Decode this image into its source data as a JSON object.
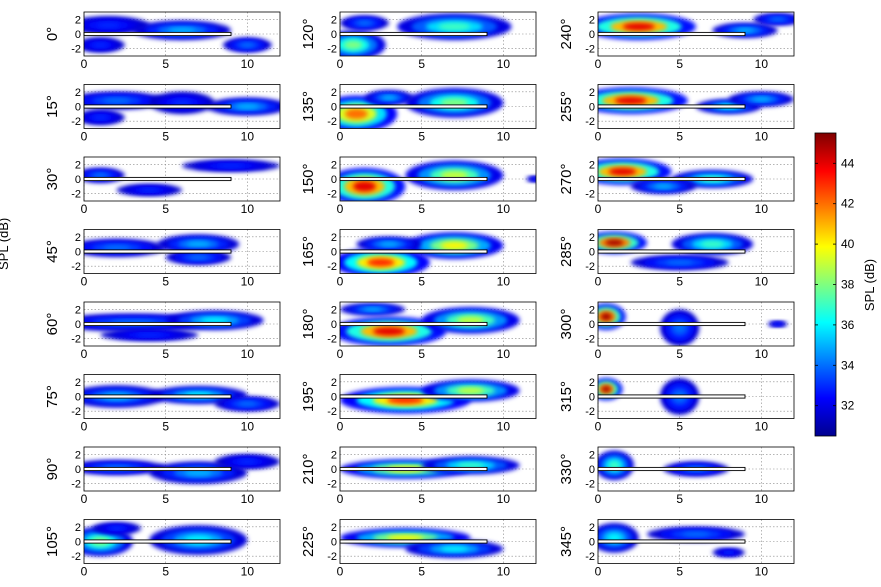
{
  "figure": {
    "cut_off_left_label": "SPL (dB)",
    "colorbar": {
      "label": "SPL (dB)",
      "ticks": [
        32,
        34,
        36,
        38,
        40,
        42,
        44
      ],
      "range": [
        30.5,
        45.5
      ],
      "colormap": "jet"
    },
    "panel_axes": {
      "x_ticks": [
        0,
        5,
        10
      ],
      "y_ticks": [
        2,
        0,
        -2
      ],
      "x_range": [
        0,
        12
      ],
      "y_range": [
        -3,
        3
      ],
      "grid": "dotted"
    }
  },
  "chart_data": {
    "type": "heatmap",
    "panels": [
      {
        "label": "0°",
        "blobs": [
          [
            1.5,
            1.2,
            2.5,
            1.2,
            33
          ],
          [
            6,
            0.5,
            3,
            1.3,
            35
          ],
          [
            10,
            -1.5,
            1.5,
            1,
            34
          ],
          [
            1,
            -1.5,
            1.5,
            1,
            33
          ]
        ]
      },
      {
        "label": "15°",
        "blobs": [
          [
            2,
            0.8,
            3,
            1.2,
            34
          ],
          [
            6,
            0.5,
            2,
            1.5,
            33
          ],
          [
            10,
            0,
            2.5,
            1.2,
            35
          ],
          [
            1,
            -1.5,
            1.5,
            1,
            33
          ]
        ]
      },
      {
        "label": "30°",
        "blobs": [
          [
            1,
            0.5,
            1.5,
            1,
            34
          ],
          [
            9,
            1.8,
            3,
            0.8,
            33
          ],
          [
            4,
            -1.5,
            2,
            0.8,
            33
          ]
        ]
      },
      {
        "label": "45°",
        "blobs": [
          [
            2,
            0.5,
            3,
            1.2,
            34
          ],
          [
            7,
            1,
            2.5,
            1.3,
            35
          ],
          [
            7,
            -0.8,
            2,
            1,
            34
          ]
        ]
      },
      {
        "label": "60°",
        "blobs": [
          [
            3,
            0.2,
            5,
            1.2,
            34
          ],
          [
            8,
            0.5,
            3,
            1.3,
            36
          ],
          [
            4,
            -1.5,
            3,
            0.8,
            33
          ]
        ]
      },
      {
        "label": "75°",
        "blobs": [
          [
            2,
            0,
            3,
            1.5,
            35
          ],
          [
            7,
            0.2,
            3,
            1.2,
            36
          ],
          [
            10,
            -1,
            2,
            1,
            34
          ]
        ]
      },
      {
        "label": "90°",
        "blobs": [
          [
            2,
            0.2,
            3,
            1,
            34
          ],
          [
            7,
            -0.5,
            3,
            1.5,
            35
          ],
          [
            10,
            1,
            2,
            1,
            33
          ]
        ]
      },
      {
        "label": "105°",
        "blobs": [
          [
            1,
            0,
            2,
            2,
            38
          ],
          [
            7,
            0.2,
            3,
            2,
            36
          ],
          [
            2,
            1.8,
            1.5,
            0.8,
            33
          ]
        ]
      },
      {
        "label": "120°",
        "blobs": [
          [
            0.8,
            -1.5,
            2,
            2,
            38
          ],
          [
            7,
            1,
            3.5,
            1.8,
            37
          ],
          [
            1.5,
            1.5,
            1.5,
            1,
            34
          ]
        ]
      },
      {
        "label": "135°",
        "blobs": [
          [
            1,
            -1,
            2.5,
            2.5,
            42
          ],
          [
            7,
            0.5,
            3,
            2,
            38
          ],
          [
            3,
            1.2,
            1.5,
            1,
            35
          ]
        ]
      },
      {
        "label": "150°",
        "blobs": [
          [
            1.5,
            -1,
            2.5,
            2.5,
            44
          ],
          [
            7,
            0.5,
            3,
            2,
            39
          ],
          [
            12,
            0,
            0.6,
            0.4,
            33
          ]
        ]
      },
      {
        "label": "165°",
        "blobs": [
          [
            2.5,
            -1.5,
            3,
            2,
            43
          ],
          [
            7,
            0.8,
            3,
            1.8,
            40
          ],
          [
            3,
            1,
            2,
            1,
            35
          ]
        ]
      },
      {
        "label": "180°",
        "blobs": [
          [
            3,
            -1,
            3.5,
            2,
            44
          ],
          [
            8,
            0.5,
            3,
            1.8,
            39
          ],
          [
            2,
            2,
            2,
            0.8,
            35
          ]
        ]
      },
      {
        "label": "195°",
        "blobs": [
          [
            4,
            -0.5,
            4,
            1.8,
            43
          ],
          [
            8,
            0.8,
            3,
            1.5,
            39
          ]
        ]
      },
      {
        "label": "210°",
        "blobs": [
          [
            4,
            0,
            4,
            1.3,
            40
          ],
          [
            8,
            0.5,
            3,
            1.2,
            37
          ]
        ]
      },
      {
        "label": "225°",
        "blobs": [
          [
            4,
            0.5,
            4,
            1.3,
            40
          ],
          [
            7,
            -1,
            3,
            1.2,
            36
          ]
        ]
      },
      {
        "label": "240°",
        "blobs": [
          [
            2.5,
            1,
            3.5,
            1.8,
            44
          ],
          [
            9,
            0.5,
            2,
            1,
            35
          ],
          [
            11,
            2,
            1.5,
            0.8,
            34
          ]
        ]
      },
      {
        "label": "255°",
        "blobs": [
          [
            2,
            0.8,
            3.5,
            1.8,
            44
          ],
          [
            8,
            0,
            2,
            1,
            36
          ],
          [
            10,
            1,
            2,
            1,
            35
          ]
        ]
      },
      {
        "label": "270°",
        "blobs": [
          [
            1.5,
            1,
            3,
            1.8,
            44
          ],
          [
            7,
            0,
            2.5,
            1.2,
            37
          ],
          [
            4,
            -1,
            2,
            1,
            35
          ]
        ]
      },
      {
        "label": "285°",
        "blobs": [
          [
            1,
            1.2,
            2,
            1.5,
            45
          ],
          [
            7,
            1,
            2.5,
            1.5,
            37
          ],
          [
            5,
            -1.5,
            3,
            1,
            34
          ]
        ]
      },
      {
        "label": "300°",
        "blobs": [
          [
            0.5,
            1,
            1.2,
            1.8,
            45
          ],
          [
            5,
            -0.5,
            1.2,
            2.5,
            34
          ],
          [
            11,
            0,
            0.6,
            0.4,
            33
          ]
        ]
      },
      {
        "label": "315°",
        "blobs": [
          [
            0.5,
            1,
            1,
            1.5,
            45
          ],
          [
            5,
            0,
            1.2,
            2.5,
            34
          ]
        ]
      },
      {
        "label": "330°",
        "blobs": [
          [
            1,
            0.5,
            1.2,
            2,
            37
          ],
          [
            6,
            0,
            2,
            1,
            34
          ]
        ]
      },
      {
        "label": "345°",
        "blobs": [
          [
            1,
            0.5,
            1.5,
            2,
            36
          ],
          [
            6,
            1,
            3,
            1,
            34
          ],
          [
            8,
            -1.5,
            1,
            0.6,
            33
          ]
        ]
      }
    ]
  }
}
